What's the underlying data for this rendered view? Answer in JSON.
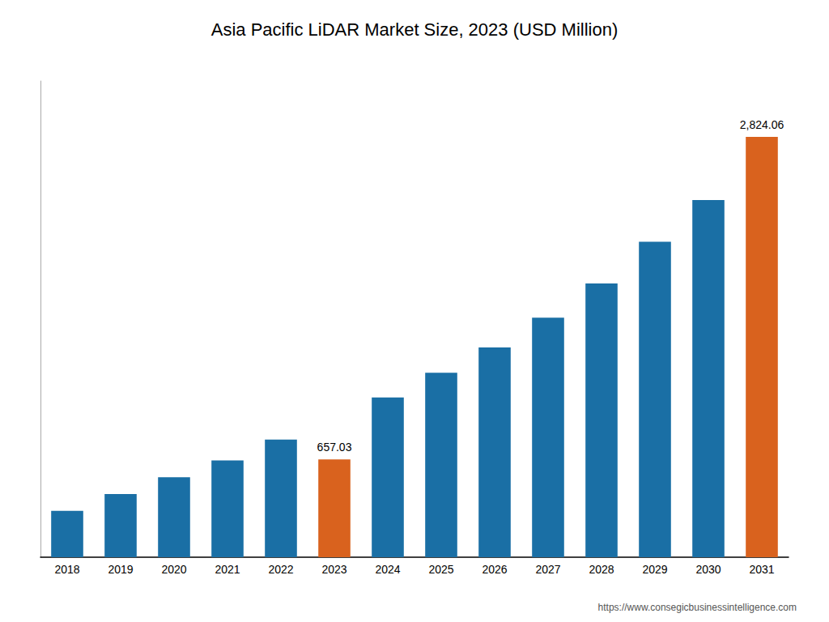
{
  "chart_data": {
    "type": "bar",
    "title": "Asia Pacific LiDAR Market Size, 2023 (USD Million)",
    "categories": [
      "2018",
      "2019",
      "2020",
      "2021",
      "2022",
      "2023",
      "2024",
      "2025",
      "2026",
      "2027",
      "2028",
      "2029",
      "2030",
      "2031"
    ],
    "values": [
      311,
      424,
      537,
      650,
      790,
      657.03,
      1074,
      1240,
      1410,
      1610,
      1840,
      2120,
      2400,
      2824.06
    ],
    "value_labels": [
      null,
      null,
      null,
      null,
      null,
      "657.03",
      null,
      null,
      null,
      null,
      null,
      null,
      null,
      "2,824.06"
    ],
    "colors": [
      "#1a6fa5",
      "#1a6fa5",
      "#1a6fa5",
      "#1a6fa5",
      "#1a6fa5",
      "#d9621e",
      "#1a6fa5",
      "#1a6fa5",
      "#1a6fa5",
      "#1a6fa5",
      "#1a6fa5",
      "#1a6fa5",
      "#1a6fa5",
      "#d9621e"
    ],
    "ylim": [
      0,
      3200
    ],
    "grid": false,
    "tick_labels": "x",
    "annotations": [
      {
        "text": "https://www.consegicbusinessintelligence.com"
      }
    ]
  }
}
